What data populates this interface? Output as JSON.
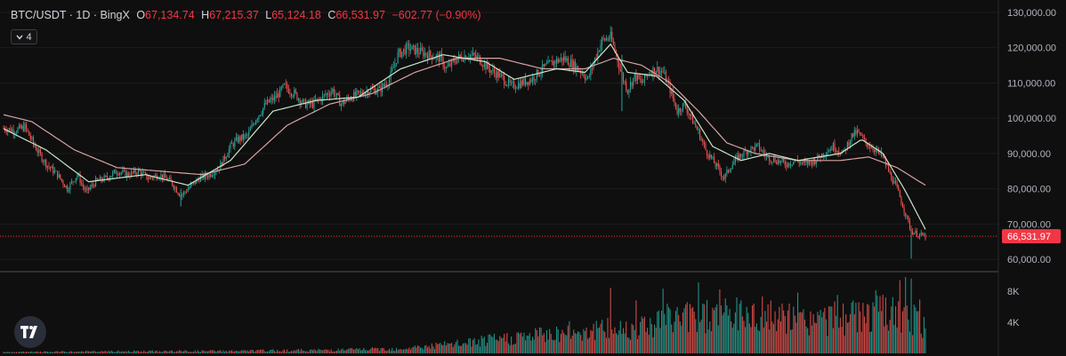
{
  "legend": {
    "symbol": "BTC/USDT · 1D · BingX",
    "open_key": "O",
    "open": "67,134.74",
    "high_key": "H",
    "high": "67,215.37",
    "low_key": "L",
    "low": "65,124.18",
    "close_key": "C",
    "close": "66,531.97",
    "change": "−602.77 (−0.90%)"
  },
  "indicator_count": "4",
  "colors": {
    "up": "#26a69a",
    "down": "#ef5350",
    "ma_fast": "#c8e6c9",
    "ma_slow": "#d9a3a3",
    "price_tag": "#f23645"
  },
  "price_label": "66,531.97",
  "chart_data": {
    "type": "candlestick",
    "y_ticks": [
      "130,000.00",
      "120,000.00",
      "110,000.00",
      "100,000.00",
      "90,000.00",
      "80,000.00",
      "70,000.00",
      "60,000.00"
    ],
    "y_tick_values": [
      130000,
      120000,
      110000,
      100000,
      90000,
      80000,
      70000,
      60000
    ],
    "ylim": [
      57500,
      132000
    ],
    "volume_ticks": [
      "8K",
      "4K"
    ],
    "volume_tick_values": [
      8000,
      4000
    ],
    "volume_ylim": [
      0,
      9800
    ],
    "last_price": 66531.97,
    "close_path": [
      [
        0,
        97200
      ],
      [
        8,
        96500
      ],
      [
        15,
        97500
      ],
      [
        22,
        92000
      ],
      [
        30,
        87000
      ],
      [
        38,
        84000
      ],
      [
        45,
        80000
      ],
      [
        52,
        84000
      ],
      [
        58,
        79000
      ],
      [
        65,
        82000
      ],
      [
        72,
        83000
      ],
      [
        80,
        85000
      ],
      [
        88,
        84000
      ],
      [
        95,
        85000
      ],
      [
        102,
        83000
      ],
      [
        110,
        84000
      ],
      [
        118,
        82000
      ],
      [
        125,
        78000
      ],
      [
        130,
        80000
      ],
      [
        138,
        83000
      ],
      [
        145,
        84000
      ],
      [
        152,
        86000
      ],
      [
        160,
        92000
      ],
      [
        165,
        94000
      ],
      [
        172,
        95000
      ],
      [
        178,
        100000
      ],
      [
        185,
        104000
      ],
      [
        192,
        106000
      ],
      [
        198,
        109000
      ],
      [
        205,
        107000
      ],
      [
        212,
        104000
      ],
      [
        218,
        104000
      ],
      [
        225,
        106000
      ],
      [
        232,
        108000
      ],
      [
        238,
        104000
      ],
      [
        245,
        106000
      ],
      [
        252,
        107000
      ],
      [
        258,
        108000
      ],
      [
        265,
        108000
      ],
      [
        272,
        111000
      ],
      [
        278,
        118000
      ],
      [
        285,
        120000
      ],
      [
        292,
        119000
      ],
      [
        300,
        118000
      ],
      [
        308,
        117000
      ],
      [
        312,
        114000
      ],
      [
        320,
        117000
      ],
      [
        328,
        118000
      ],
      [
        335,
        117000
      ],
      [
        342,
        114000
      ],
      [
        350,
        112000
      ],
      [
        358,
        109000
      ],
      [
        365,
        110000
      ],
      [
        372,
        111000
      ],
      [
        380,
        114000
      ],
      [
        388,
        116000
      ],
      [
        395,
        117000
      ],
      [
        402,
        115000
      ],
      [
        408,
        113000
      ],
      [
        412,
        111000
      ],
      [
        418,
        118000
      ],
      [
        422,
        122000
      ],
      [
        428,
        123000
      ],
      [
        432,
        118000
      ],
      [
        436,
        112000
      ],
      [
        440,
        108000
      ],
      [
        445,
        112000
      ],
      [
        450,
        110000
      ],
      [
        455,
        113000
      ],
      [
        460,
        114000
      ],
      [
        465,
        113000
      ],
      [
        470,
        108000
      ],
      [
        475,
        102000
      ],
      [
        480,
        104000
      ],
      [
        485,
        100000
      ],
      [
        490,
        96000
      ],
      [
        495,
        91000
      ],
      [
        500,
        88000
      ],
      [
        505,
        85000
      ],
      [
        508,
        83000
      ],
      [
        512,
        86000
      ],
      [
        518,
        89000
      ],
      [
        525,
        91000
      ],
      [
        532,
        92000
      ],
      [
        538,
        89000
      ],
      [
        545,
        88000
      ],
      [
        552,
        87000
      ],
      [
        558,
        88000
      ],
      [
        565,
        87000
      ],
      [
        572,
        88000
      ],
      [
        578,
        90000
      ],
      [
        585,
        92000
      ],
      [
        592,
        90000
      ],
      [
        598,
        95000
      ],
      [
        602,
        96000
      ],
      [
        608,
        93000
      ],
      [
        615,
        91000
      ],
      [
        620,
        89000
      ],
      [
        625,
        84000
      ],
      [
        630,
        80000
      ],
      [
        635,
        74000
      ],
      [
        640,
        68000
      ],
      [
        645,
        67000
      ],
      [
        650,
        66500
      ]
    ],
    "ma_fast": [
      [
        0,
        97000
      ],
      [
        30,
        91000
      ],
      [
        60,
        82000
      ],
      [
        100,
        84000
      ],
      [
        130,
        81000
      ],
      [
        160,
        88000
      ],
      [
        190,
        102000
      ],
      [
        220,
        105000
      ],
      [
        250,
        106000
      ],
      [
        280,
        114000
      ],
      [
        310,
        118000
      ],
      [
        340,
        116000
      ],
      [
        360,
        111000
      ],
      [
        390,
        114000
      ],
      [
        410,
        113000
      ],
      [
        428,
        121000
      ],
      [
        440,
        113000
      ],
      [
        460,
        112000
      ],
      [
        480,
        105000
      ],
      [
        500,
        92000
      ],
      [
        520,
        88000
      ],
      [
        540,
        90000
      ],
      [
        560,
        88000
      ],
      [
        590,
        90000
      ],
      [
        605,
        94000
      ],
      [
        620,
        90000
      ],
      [
        635,
        80000
      ],
      [
        650,
        68500
      ]
    ],
    "ma_slow": [
      [
        0,
        101000
      ],
      [
        20,
        99000
      ],
      [
        50,
        91000
      ],
      [
        80,
        86000
      ],
      [
        110,
        85000
      ],
      [
        140,
        84000
      ],
      [
        170,
        87000
      ],
      [
        200,
        98000
      ],
      [
        230,
        104000
      ],
      [
        260,
        107000
      ],
      [
        290,
        113000
      ],
      [
        320,
        117000
      ],
      [
        350,
        117000
      ],
      [
        380,
        114000
      ],
      [
        410,
        114000
      ],
      [
        430,
        117000
      ],
      [
        450,
        115000
      ],
      [
        470,
        110000
      ],
      [
        490,
        102000
      ],
      [
        510,
        93000
      ],
      [
        530,
        90000
      ],
      [
        560,
        88000
      ],
      [
        590,
        88000
      ],
      [
        610,
        89000
      ],
      [
        630,
        86000
      ],
      [
        650,
        81000
      ]
    ],
    "volume_profile": [
      [
        0,
        150
      ],
      [
        80,
        250
      ],
      [
        160,
        300
      ],
      [
        220,
        400
      ],
      [
        280,
        600
      ],
      [
        320,
        1200
      ],
      [
        360,
        2000
      ],
      [
        400,
        2800
      ],
      [
        440,
        3200
      ],
      [
        470,
        4500
      ],
      [
        500,
        5000
      ],
      [
        530,
        4800
      ],
      [
        560,
        4200
      ],
      [
        590,
        4500
      ],
      [
        620,
        5200
      ],
      [
        650,
        3800
      ]
    ],
    "volume_spikes": [
      [
        428,
        8400
      ],
      [
        446,
        6800
      ],
      [
        465,
        8300
      ],
      [
        490,
        9100
      ],
      [
        505,
        8200
      ],
      [
        520,
        6800
      ],
      [
        535,
        7300
      ],
      [
        560,
        7800
      ],
      [
        588,
        7500
      ],
      [
        615,
        8100
      ],
      [
        632,
        9400
      ],
      [
        636,
        9800
      ],
      [
        640,
        9600
      ],
      [
        646,
        6900
      ]
    ]
  }
}
